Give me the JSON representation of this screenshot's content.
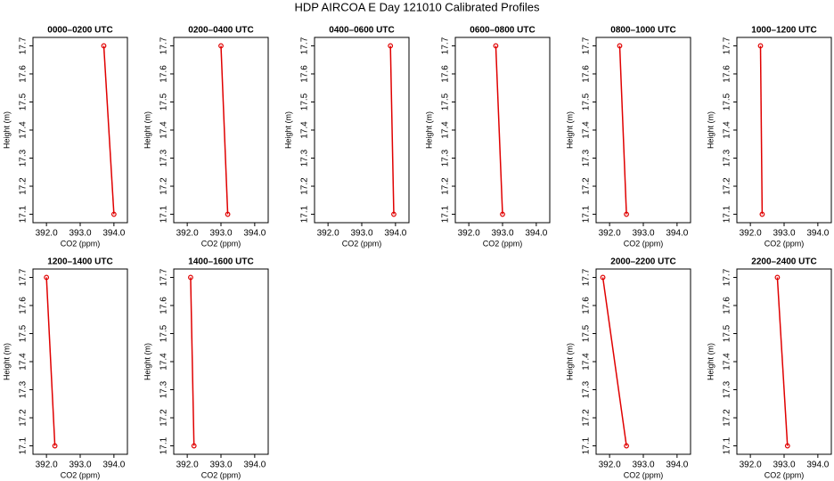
{
  "title": "HDP AIRCOA E  Day 121010  Calibrated Profiles",
  "chart_data": [
    {
      "type": "line",
      "title": "0000–0200 UTC",
      "x_label": "CO2 (ppm)",
      "y_label": "Height (m)",
      "color": "#e00000",
      "x": [
        393.7,
        394.0
      ],
      "values": [
        17.7,
        17.1
      ],
      "xlim": [
        391.6,
        394.4
      ],
      "ylim": [
        17.07,
        17.73
      ],
      "xticks": [
        {
          "value": 392,
          "label": "392.0"
        },
        {
          "value": 393,
          "label": "393.0"
        },
        {
          "value": 394,
          "label": "394.0"
        }
      ],
      "yticks": [
        17.1,
        17.2,
        17.3,
        17.4,
        17.5,
        17.6,
        17.7
      ]
    },
    {
      "type": "line",
      "title": "0200–0400 UTC",
      "x_label": "CO2 (ppm)",
      "y_label": "Height (m)",
      "color": "#e00000",
      "x": [
        393.0,
        393.2
      ],
      "values": [
        17.7,
        17.1
      ],
      "xlim": [
        391.6,
        394.4
      ],
      "ylim": [
        17.07,
        17.73
      ],
      "xticks": [
        {
          "value": 392,
          "label": "392.0"
        },
        {
          "value": 393,
          "label": "393.0"
        },
        {
          "value": 394,
          "label": "394.0"
        }
      ],
      "yticks": [
        17.1,
        17.2,
        17.3,
        17.4,
        17.5,
        17.6,
        17.7
      ]
    },
    {
      "type": "line",
      "title": "0400–0600 UTC",
      "x_label": "CO2 (ppm)",
      "y_label": "Height (m)",
      "color": "#e00000",
      "x": [
        393.85,
        393.95
      ],
      "values": [
        17.7,
        17.1
      ],
      "xlim": [
        391.6,
        394.4
      ],
      "ylim": [
        17.07,
        17.73
      ],
      "xticks": [
        {
          "value": 392,
          "label": "392.0"
        },
        {
          "value": 393,
          "label": "393.0"
        },
        {
          "value": 394,
          "label": "394.0"
        }
      ],
      "yticks": [
        17.1,
        17.2,
        17.3,
        17.4,
        17.5,
        17.6,
        17.7
      ]
    },
    {
      "type": "line",
      "title": "0600–0800 UTC",
      "x_label": "CO2 (ppm)",
      "y_label": "Height (m)",
      "color": "#e00000",
      "x": [
        392.8,
        393.0
      ],
      "values": [
        17.7,
        17.1
      ],
      "xlim": [
        391.6,
        394.4
      ],
      "ylim": [
        17.07,
        17.73
      ],
      "xticks": [
        {
          "value": 392,
          "label": "392.0"
        },
        {
          "value": 393,
          "label": "393.0"
        },
        {
          "value": 394,
          "label": "394.0"
        }
      ],
      "yticks": [
        17.1,
        17.2,
        17.3,
        17.4,
        17.5,
        17.6,
        17.7
      ]
    },
    {
      "type": "line",
      "title": "0800–1000 UTC",
      "x_label": "CO2 (ppm)",
      "y_label": "Height (m)",
      "color": "#e00000",
      "x": [
        392.3,
        392.5
      ],
      "values": [
        17.7,
        17.1
      ],
      "xlim": [
        391.6,
        394.4
      ],
      "ylim": [
        17.07,
        17.73
      ],
      "xticks": [
        {
          "value": 392,
          "label": "392.0"
        },
        {
          "value": 393,
          "label": "393.0"
        },
        {
          "value": 394,
          "label": "394.0"
        }
      ],
      "yticks": [
        17.1,
        17.2,
        17.3,
        17.4,
        17.5,
        17.6,
        17.7
      ]
    },
    {
      "type": "line",
      "title": "1000–1200 UTC",
      "x_label": "CO2 (ppm)",
      "y_label": "Height (m)",
      "color": "#e00000",
      "x": [
        392.3,
        392.35
      ],
      "values": [
        17.7,
        17.1
      ],
      "xlim": [
        391.6,
        394.4
      ],
      "ylim": [
        17.07,
        17.73
      ],
      "xticks": [
        {
          "value": 392,
          "label": "392.0"
        },
        {
          "value": 393,
          "label": "393.0"
        },
        {
          "value": 394,
          "label": "394.0"
        }
      ],
      "yticks": [
        17.1,
        17.2,
        17.3,
        17.4,
        17.5,
        17.6,
        17.7
      ]
    },
    {
      "type": "line",
      "title": "1200–1400 UTC",
      "x_label": "CO2 (ppm)",
      "y_label": "Height (m)",
      "color": "#e00000",
      "x": [
        392.0,
        392.25
      ],
      "values": [
        17.7,
        17.1
      ],
      "xlim": [
        391.6,
        394.4
      ],
      "ylim": [
        17.07,
        17.73
      ],
      "xticks": [
        {
          "value": 392,
          "label": "392.0"
        },
        {
          "value": 393,
          "label": "393.0"
        },
        {
          "value": 394,
          "label": "394.0"
        }
      ],
      "yticks": [
        17.1,
        17.2,
        17.3,
        17.4,
        17.5,
        17.6,
        17.7
      ]
    },
    {
      "type": "line",
      "title": "1400–1600 UTC",
      "x_label": "CO2 (ppm)",
      "y_label": "Height (m)",
      "color": "#e00000",
      "x": [
        392.1,
        392.2
      ],
      "values": [
        17.7,
        17.1
      ],
      "xlim": [
        391.6,
        394.4
      ],
      "ylim": [
        17.07,
        17.73
      ],
      "xticks": [
        {
          "value": 392,
          "label": "392.0"
        },
        {
          "value": 393,
          "label": "393.0"
        },
        {
          "value": 394,
          "label": "394.0"
        }
      ],
      "yticks": [
        17.1,
        17.2,
        17.3,
        17.4,
        17.5,
        17.6,
        17.7
      ]
    },
    {
      "type": "line",
      "title": "2000–2200 UTC",
      "x_label": "CO2 (ppm)",
      "y_label": "Height (m)",
      "color": "#e00000",
      "x": [
        391.8,
        392.5
      ],
      "values": [
        17.7,
        17.1
      ],
      "xlim": [
        391.6,
        394.4
      ],
      "ylim": [
        17.07,
        17.73
      ],
      "xticks": [
        {
          "value": 392,
          "label": "392.0"
        },
        {
          "value": 393,
          "label": "393.0"
        },
        {
          "value": 394,
          "label": "394.0"
        }
      ],
      "yticks": [
        17.1,
        17.2,
        17.3,
        17.4,
        17.5,
        17.6,
        17.7
      ]
    },
    {
      "type": "line",
      "title": "2200–2400 UTC",
      "x_label": "CO2 (ppm)",
      "y_label": "Height (m)",
      "color": "#e00000",
      "x": [
        392.8,
        393.1
      ],
      "values": [
        17.7,
        17.1
      ],
      "xlim": [
        391.6,
        394.4
      ],
      "ylim": [
        17.07,
        17.73
      ],
      "xticks": [
        {
          "value": 392,
          "label": "392.0"
        },
        {
          "value": 393,
          "label": "393.0"
        },
        {
          "value": 394,
          "label": "394.0"
        }
      ],
      "yticks": [
        17.1,
        17.2,
        17.3,
        17.4,
        17.5,
        17.6,
        17.7
      ]
    }
  ]
}
